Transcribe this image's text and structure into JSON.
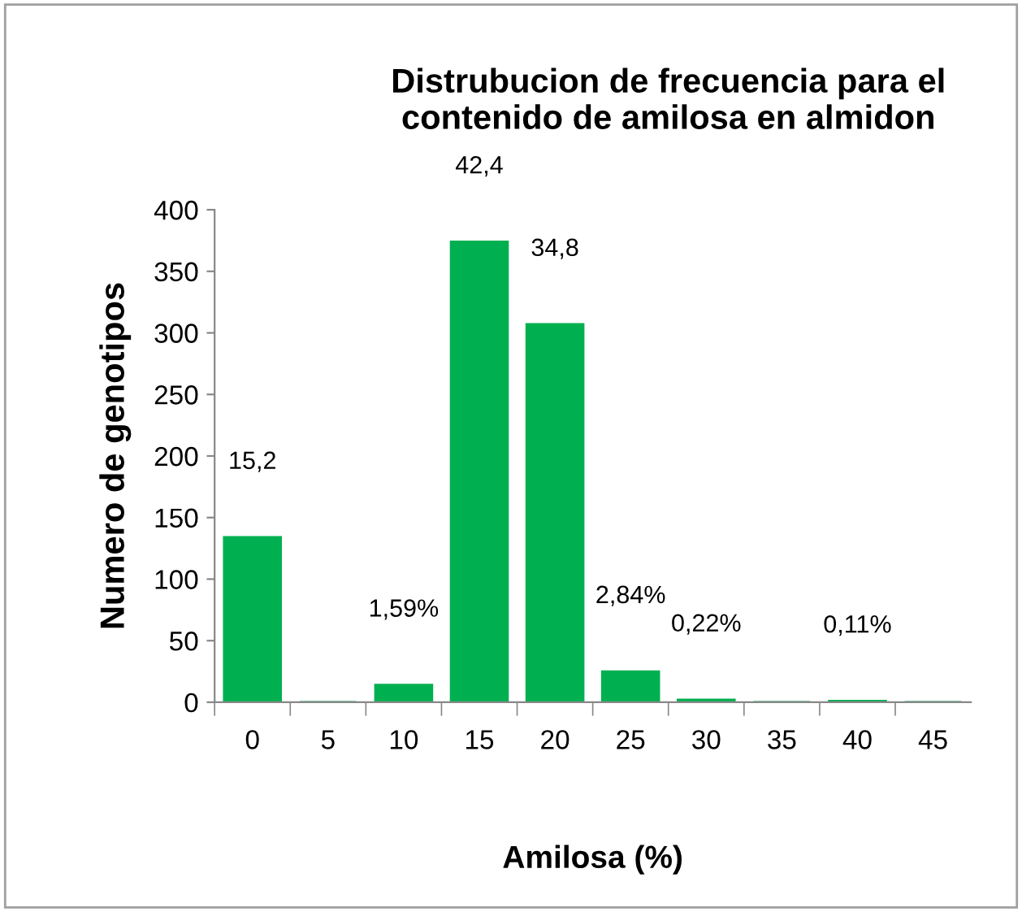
{
  "chart_data": {
    "type": "bar",
    "title": "Distrubucion de frecuencia para el contenido de amilosa en almidon",
    "xlabel": "Amilosa (%)",
    "ylabel": "Numero de genotipos",
    "categories": [
      "0",
      "5",
      "10",
      "15",
      "20",
      "25",
      "30",
      "35",
      "40",
      "45"
    ],
    "values": [
      134,
      0,
      14,
      374,
      307,
      25,
      2,
      0,
      1,
      0
    ],
    "annotations": [
      {
        "text": "15,2",
        "x": "0",
        "y": 134
      },
      {
        "text": "1,59%",
        "x": "10",
        "y": 14
      },
      {
        "text": "42,4",
        "x": "15",
        "y": 374
      },
      {
        "text": "34,8",
        "x": "20",
        "y": 307
      },
      {
        "text": "2,84%",
        "x": "25",
        "y": 25
      },
      {
        "text": "0,22%",
        "x": "30",
        "y": 2
      },
      {
        "text": "0,11%",
        "x": "40",
        "y": 1
      }
    ],
    "color": "#00b050",
    "ylim": [
      0,
      400
    ],
    "yticks": [
      0,
      50,
      100,
      150,
      200,
      250,
      300,
      350,
      400
    ],
    "grid": false,
    "legend": false
  }
}
